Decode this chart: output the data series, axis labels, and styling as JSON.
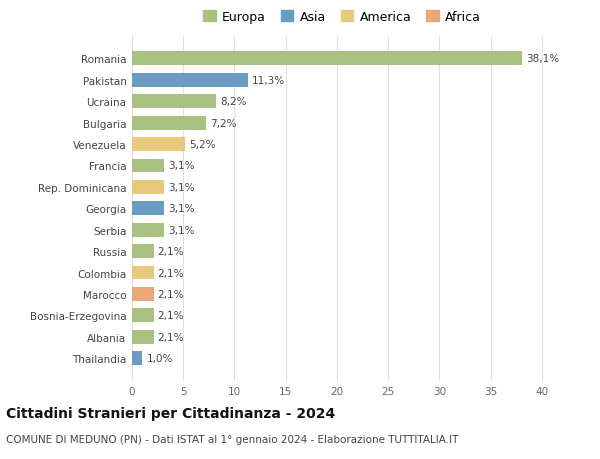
{
  "categories": [
    "Romania",
    "Pakistan",
    "Ucraina",
    "Bulgaria",
    "Venezuela",
    "Francia",
    "Rep. Dominicana",
    "Georgia",
    "Serbia",
    "Russia",
    "Colombia",
    "Marocco",
    "Bosnia-Erzegovina",
    "Albania",
    "Thailandia"
  ],
  "values": [
    38.1,
    11.3,
    8.2,
    7.2,
    5.2,
    3.1,
    3.1,
    3.1,
    3.1,
    2.1,
    2.1,
    2.1,
    2.1,
    2.1,
    1.0
  ],
  "labels": [
    "38,1%",
    "11,3%",
    "8,2%",
    "7,2%",
    "5,2%",
    "3,1%",
    "3,1%",
    "3,1%",
    "3,1%",
    "2,1%",
    "2,1%",
    "2,1%",
    "2,1%",
    "2,1%",
    "1,0%"
  ],
  "continents": [
    "Europa",
    "Asia",
    "Europa",
    "Europa",
    "America",
    "Europa",
    "America",
    "Asia",
    "Europa",
    "Europa",
    "America",
    "Africa",
    "Europa",
    "Europa",
    "Asia"
  ],
  "colors": {
    "Europa": "#a8c080",
    "Asia": "#6b9dc2",
    "America": "#e8c87a",
    "Africa": "#e8a878"
  },
  "legend_order": [
    "Europa",
    "Asia",
    "America",
    "Africa"
  ],
  "title": "Cittadini Stranieri per Cittadinanza - 2024",
  "subtitle": "COMUNE DI MEDUNO (PN) - Dati ISTAT al 1° gennaio 2024 - Elaborazione TUTTITALIA.IT",
  "xlim": [
    0,
    41
  ],
  "xticks": [
    0,
    5,
    10,
    15,
    20,
    25,
    30,
    35,
    40
  ],
  "background_color": "#ffffff",
  "grid_color": "#e0e0e0",
  "title_fontsize": 10,
  "subtitle_fontsize": 7.5,
  "label_fontsize": 7.5,
  "tick_fontsize": 7.5,
  "legend_fontsize": 9
}
